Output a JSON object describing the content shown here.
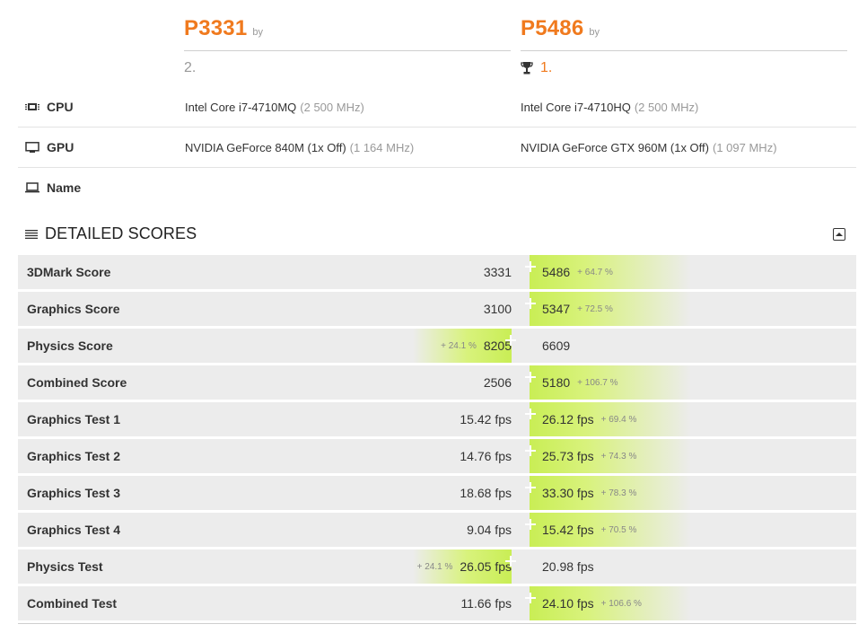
{
  "header": {
    "left": {
      "score": "P3331",
      "by": "by",
      "rank": "2."
    },
    "right": {
      "score": "P5486",
      "by": "by",
      "rank": "1."
    }
  },
  "specs": {
    "cpu": {
      "label": "CPU",
      "icon": "cpu-icon",
      "left": {
        "name": "Intel Core i7-4710MQ",
        "freq": "(2 500 MHz)"
      },
      "right": {
        "name": "Intel Core i7-4710HQ",
        "freq": "(2 500 MHz)"
      }
    },
    "gpu": {
      "label": "GPU",
      "icon": "monitor-icon",
      "left": {
        "name": "NVIDIA GeForce 840M (1x Off)",
        "freq": "(1 164 MHz)"
      },
      "right": {
        "name": "NVIDIA GeForce GTX 960M (1x Off)",
        "freq": "(1 097 MHz)"
      }
    },
    "name": {
      "label": "Name",
      "icon": "laptop-icon"
    }
  },
  "detailed": {
    "title": "DETAILED SCORES",
    "rows": [
      {
        "label": "3DMark Score",
        "left": "3331",
        "right": "5486",
        "winner": "right",
        "diff": "+ 64.7 %"
      },
      {
        "label": "Graphics Score",
        "left": "3100",
        "right": "5347",
        "winner": "right",
        "diff": "+ 72.5 %"
      },
      {
        "label": "Physics Score",
        "left": "8205",
        "right": "6609",
        "winner": "left",
        "diff": "+ 24.1 %"
      },
      {
        "label": "Combined Score",
        "left": "2506",
        "right": "5180",
        "winner": "right",
        "diff": "+ 106.7 %"
      },
      {
        "label": "Graphics Test 1",
        "left": "15.42 fps",
        "right": "26.12 fps",
        "winner": "right",
        "diff": "+ 69.4 %"
      },
      {
        "label": "Graphics Test 2",
        "left": "14.76 fps",
        "right": "25.73 fps",
        "winner": "right",
        "diff": "+ 74.3 %"
      },
      {
        "label": "Graphics Test 3",
        "left": "18.68 fps",
        "right": "33.30 fps",
        "winner": "right",
        "diff": "+ 78.3 %"
      },
      {
        "label": "Graphics Test 4",
        "left": "9.04 fps",
        "right": "15.42 fps",
        "winner": "right",
        "diff": "+ 70.5 %"
      },
      {
        "label": "Physics Test",
        "left": "26.05 fps",
        "right": "20.98 fps",
        "winner": "left",
        "diff": "+ 24.1 %"
      },
      {
        "label": "Combined Test",
        "left": "11.66 fps",
        "right": "24.10 fps",
        "winner": "right",
        "diff": "+ 106.6 %"
      }
    ]
  },
  "colors": {
    "accent": "#f07a1e",
    "winner": "#c9ee55",
    "row_bg": "#ececec"
  }
}
